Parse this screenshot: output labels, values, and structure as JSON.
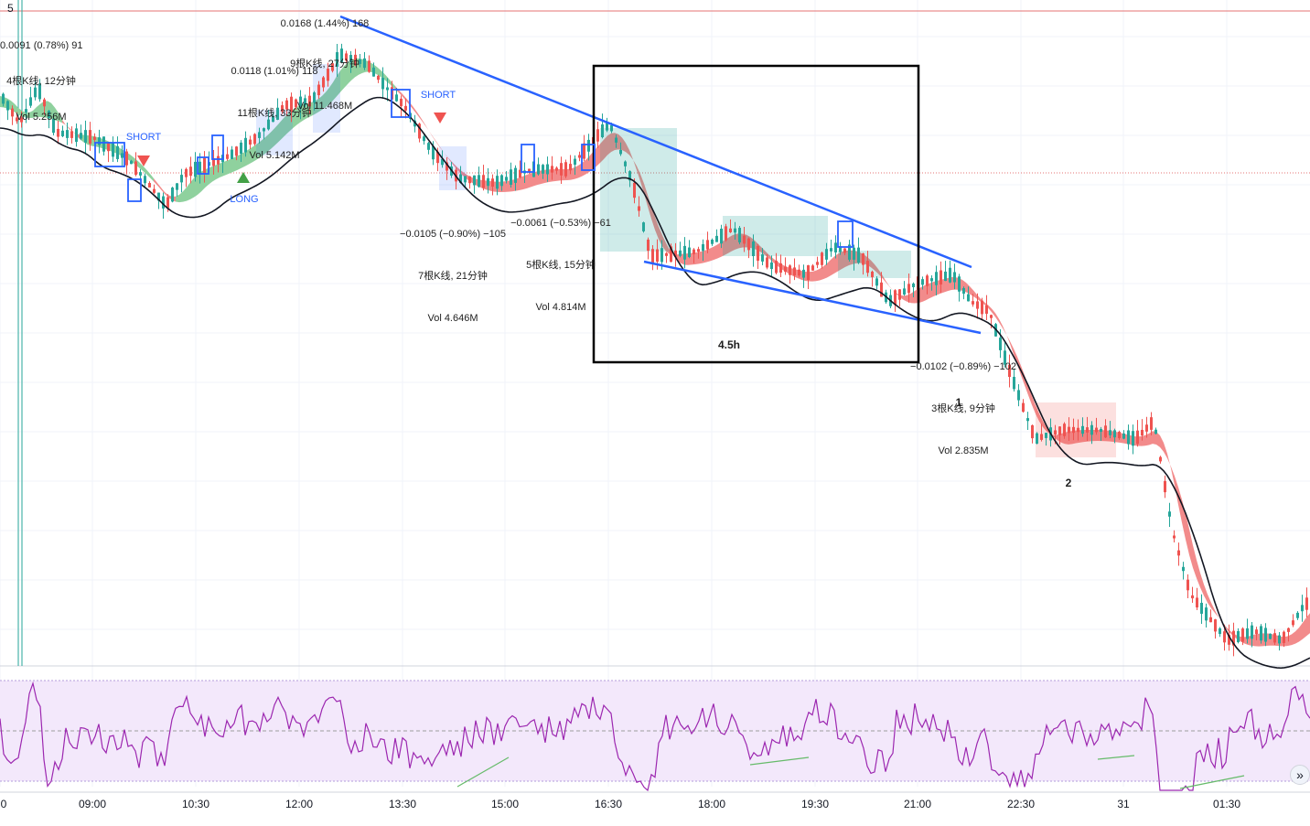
{
  "corner_label": "5",
  "colors": {
    "up": "#26a69a",
    "down": "#ef5350",
    "ema_line": "#131722",
    "ribbon_bear": "#f28b8b",
    "ribbon_bull": "#8fd19e",
    "trendline": "#2962ff",
    "box": "#000000",
    "rsi_line": "#9c27b0",
    "rsi_band": "#f3e8fb",
    "signal_short": "#ef5350",
    "signal_long": "#26a69a"
  },
  "signals": [
    {
      "label": "SHORT",
      "type": "short"
    },
    {
      "label": "LONG",
      "type": "long"
    },
    {
      "label": "SHORT",
      "type": "short"
    }
  ],
  "annotations": [
    {
      "lines": [
        "0.0091 (0.78%) 91",
        "4根K线, 12分钟",
        "Vol 5.256M"
      ]
    },
    {
      "lines": [
        "0.0168 (1.44%) 168",
        "9根K线, 27分钟",
        "Vol 11.468M"
      ]
    },
    {
      "lines": [
        "0.0118 (1.01%) 118",
        "11根K线, 33分钟",
        "Vol 5.142M"
      ]
    },
    {
      "lines": [
        "−0.0105 (−0.90%) −105",
        "7根K线, 21分钟",
        "Vol 4.646M"
      ]
    },
    {
      "lines": [
        "−0.0061 (−0.53%) −61",
        "5根K线, 15分钟",
        "Vol 4.814M"
      ]
    },
    {
      "lines": [
        "−0.0102 (−0.89%) −102",
        "3根K线, 9分钟",
        "Vol 2.835M"
      ]
    }
  ],
  "labels": {
    "box_duration": "4.5h",
    "marker_1": "1",
    "marker_2": "2"
  },
  "chart_data": {
    "type": "candlestick",
    "interval": "3m",
    "x_ticks": [
      "0",
      "09:00",
      "10:30",
      "12:00",
      "13:30",
      "15:00",
      "16:30",
      "18:00",
      "19:30",
      "21:00",
      "22:30",
      "31",
      "01:30"
    ],
    "price_pattern": "descending wedge inside 4.5h box, followed by breakdown",
    "indicators": [
      "EMA",
      "EMA ribbon (bull/bear)",
      "RSI with overbought/oversold band"
    ],
    "grid": true,
    "legend": "none",
    "scroll_button": "»"
  }
}
